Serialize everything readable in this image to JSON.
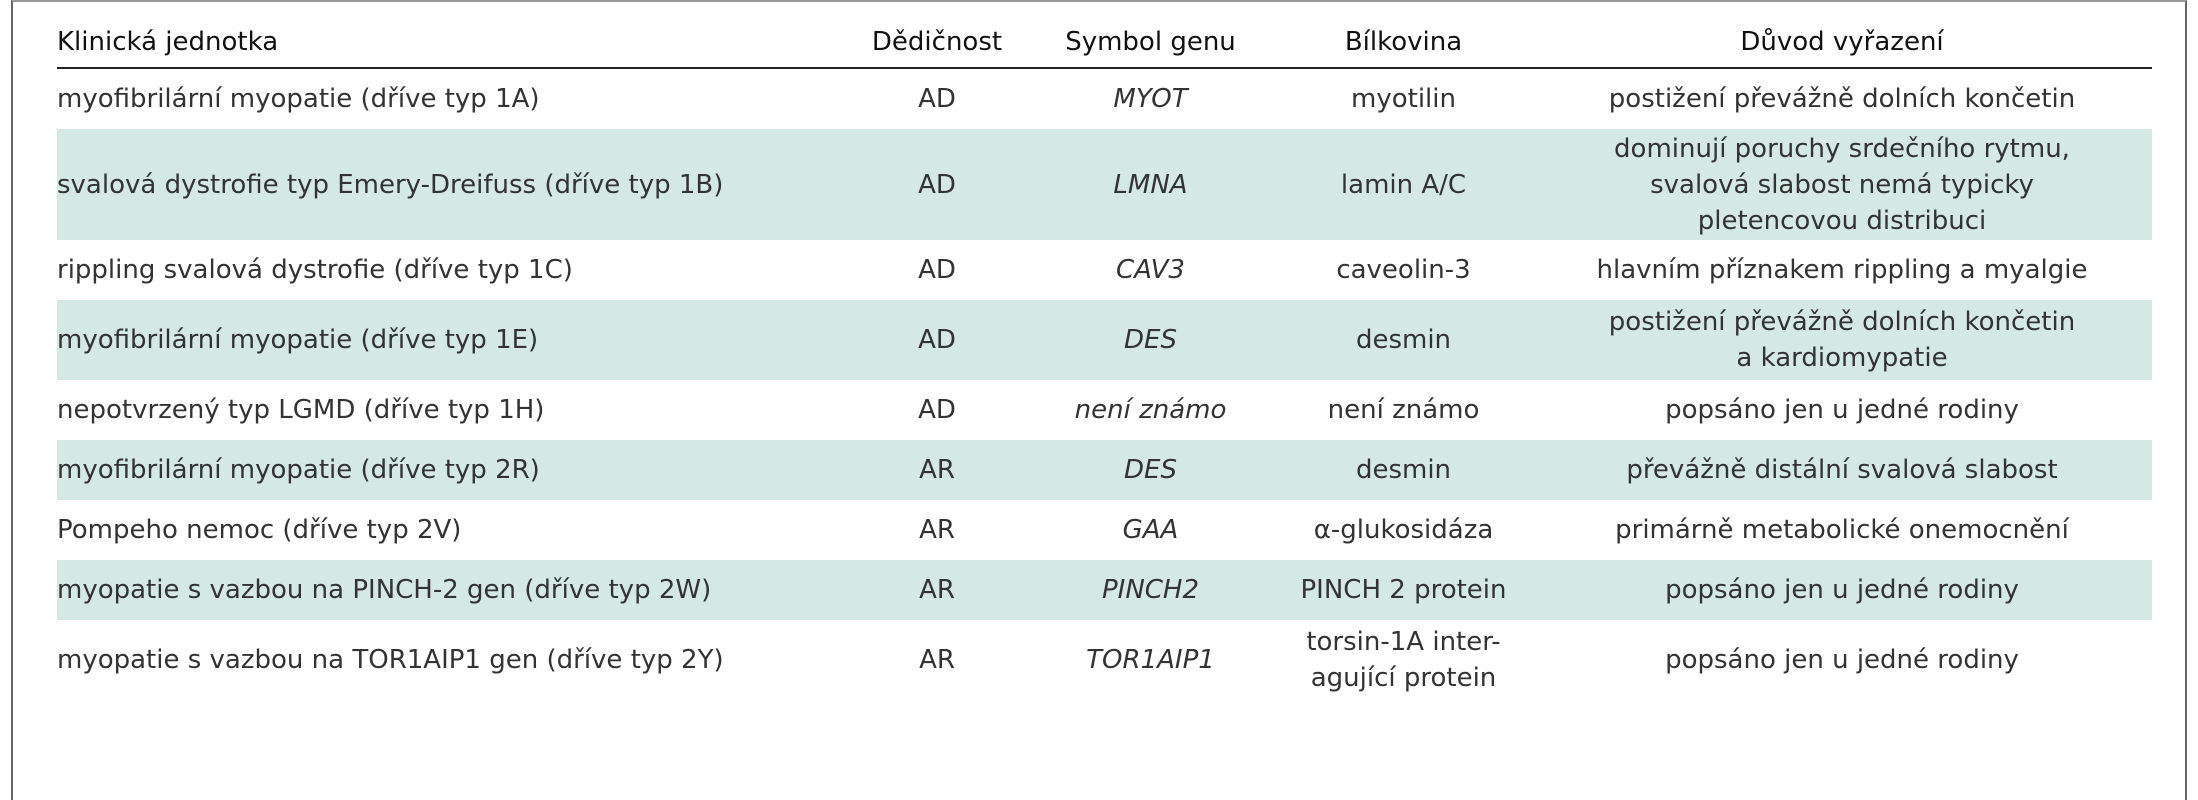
{
  "table": {
    "header": [
      "Klinická jednotka",
      "Dědičnost",
      "Symbol genu",
      "Bílkovina",
      "Důvod vyřazení"
    ],
    "rows": [
      [
        "myofibrilární myopatie (dříve typ 1A)",
        "AD",
        "MYOT",
        "myotilin",
        "postižení převážně dolních končetin"
      ],
      [
        "svalová dystrofie typ Emery-Dreifuss (dříve typ 1B)",
        "AD",
        "LMNA",
        "lamin A/C",
        [
          "dominují poruchy srdečního rytmu,",
          "svalová slabost nemá typicky",
          "pletencovou distribuci"
        ]
      ],
      [
        "rippling svalová dystrofie (dříve typ 1C)",
        "AD",
        "CAV3",
        "caveolin-3",
        "hlavním příznakem rippling a myalgie"
      ],
      [
        "myofibrilární myopatie (dříve typ 1E)",
        "AD",
        "DES",
        "desmin",
        [
          "postižení převážně dolních končetin",
          "a kardiomypatie"
        ]
      ],
      [
        "nepotvrzený typ LGMD (dříve typ 1H)",
        "AD",
        "není známo",
        "není známo",
        "popsáno jen u jedné rodiny"
      ],
      [
        "myofibrilární myopatie (dříve typ 2R)",
        "AR",
        "DES",
        "desmin",
        "převážně distální svalová slabost"
      ],
      [
        "Pompeho nemoc (dříve typ 2V)",
        "AR",
        "GAA",
        "α-glukosidáza",
        "primárně metabolické onemocnění"
      ],
      [
        "myopatie s vazbou na PINCH-2 gen (dříve typ 2W)",
        "AR",
        "PINCH2",
        "PINCH 2 protein",
        "popsáno jen u jedné rodiny"
      ],
      [
        "myopatie s vazbou na TOR1AIP1 gen (dříve typ 2Y)",
        "AR",
        "TOR1AIP1",
        [
          "torsin-1A inter-",
          "agující protein"
        ],
        "popsáno jen u jedné rodiny"
      ]
    ]
  }
}
